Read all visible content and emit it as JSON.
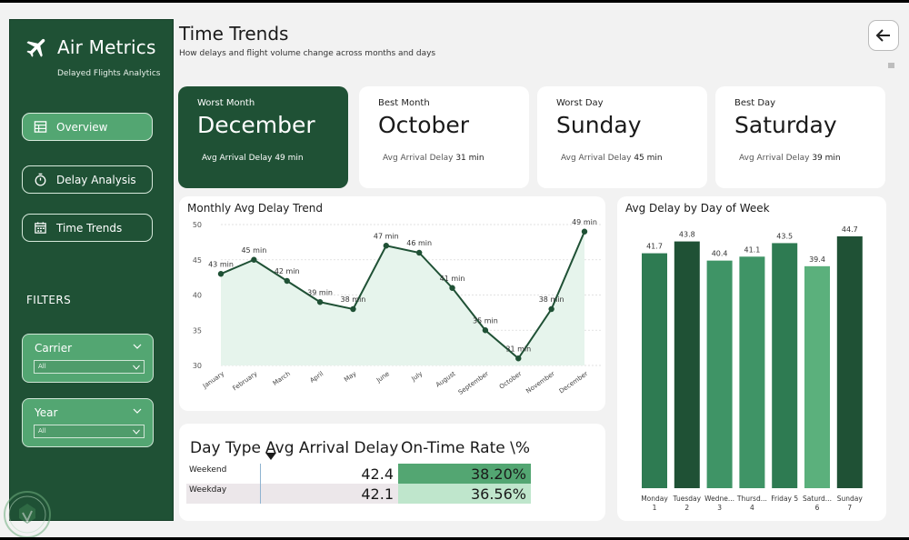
{
  "brand": {
    "title": "Air Metrics",
    "subtitle": "Delayed  Flights Analytics"
  },
  "nav": [
    {
      "label": "Overview",
      "icon": "table-icon",
      "active": true
    },
    {
      "label": "Delay Analysis",
      "icon": "stopwatch-icon",
      "active": false
    },
    {
      "label": "Time Trends",
      "icon": "calendar-icon",
      "active": false
    }
  ],
  "filters": {
    "label": "FILTERS",
    "carrier": {
      "title": "Carrier",
      "value": "All"
    },
    "year": {
      "title": "Year",
      "value": "All"
    }
  },
  "header": {
    "title": "Time Trends",
    "subtitle": "How delays and flight volume change across months and days"
  },
  "kpis": [
    {
      "label": "Worst Month",
      "value": "December",
      "foot_label": "Avg Arrival Delay",
      "foot_value": "49 min"
    },
    {
      "label": "Best Month",
      "value": "October",
      "foot_label": "Avg Arrival Delay",
      "foot_value": "31 min"
    },
    {
      "label": "Worst Day",
      "value": "Sunday",
      "foot_label": "Avg Arrival Delay",
      "foot_value": "45 min"
    },
    {
      "label": "Best Day",
      "value": "Saturday",
      "foot_label": "Avg Arrival Delay",
      "foot_value": "39 min"
    }
  ],
  "colors": {
    "dark_green": "#1f5135",
    "mid_green": "#53a672",
    "light_green": "#cdecd8",
    "area_fill": "#e6f4ec"
  },
  "chart_data": [
    {
      "type": "line",
      "title": "Monthly Avg Delay Trend",
      "categories": [
        "January",
        "February",
        "March",
        "April",
        "May",
        "June",
        "July",
        "August",
        "September",
        "October",
        "November",
        "December"
      ],
      "values": [
        43,
        45,
        42,
        39,
        38,
        47,
        46,
        41,
        35,
        31,
        38,
        49
      ],
      "data_labels": [
        "43 min",
        "45 min",
        "42 min",
        "39 min",
        "38 min",
        "47 min",
        "46 min",
        "41 min",
        "35 min",
        "31 min",
        "38 min",
        "49 min"
      ],
      "ylim": [
        30,
        50
      ],
      "yticks": [
        30,
        35,
        40,
        45,
        50
      ],
      "grid": true
    },
    {
      "type": "bar",
      "title": "Avg Delay by Day of Week",
      "categories": [
        {
          "line1": "Monday",
          "line2": "1"
        },
        {
          "line1": "Tuesday",
          "line2": "2"
        },
        {
          "line1": "Wedne...",
          "line2": "3"
        },
        {
          "line1": "Thursd...",
          "line2": "4"
        },
        {
          "line1": "Friday 5",
          "line2": ""
        },
        {
          "line1": "Saturd...",
          "line2": "6"
        },
        {
          "line1": "Sunday",
          "line2": "7"
        }
      ],
      "values": [
        41.7,
        43.8,
        40.4,
        41.1,
        43.5,
        39.4,
        44.7
      ],
      "bar_colors": [
        "#2e7b52",
        "#1f5135",
        "#3f9466",
        "#3f9466",
        "#2e7b52",
        "#5bb07c",
        "#1f5135"
      ],
      "ylim": [
        0,
        44.7
      ]
    }
  ],
  "table": {
    "headers": [
      "Day Type",
      "Avg Arrival Delay",
      "On-Time Rate \\%"
    ],
    "rows": [
      {
        "type": "Weekend",
        "delay": "42.4",
        "ontime": "38.20%",
        "ontime_fraction": 0.382
      },
      {
        "type": "Weekday",
        "delay": "42.1",
        "ontime": "36.56%",
        "ontime_fraction": 0.3656
      }
    ]
  }
}
